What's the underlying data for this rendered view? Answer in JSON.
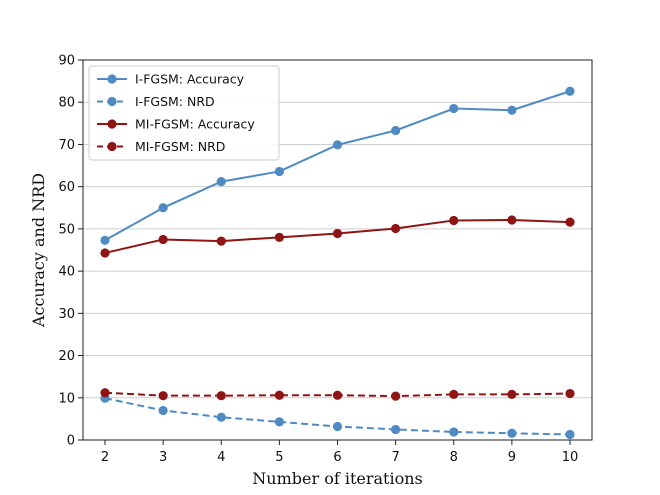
{
  "chart_data": {
    "type": "line",
    "title": "",
    "xlabel": "Number of iterations",
    "ylabel": "Accuracy and NRD",
    "x": [
      2,
      3,
      4,
      5,
      6,
      7,
      8,
      9,
      10
    ],
    "xlim": [
      2,
      10
    ],
    "ylim": [
      0,
      90
    ],
    "yticks": [
      0,
      10,
      20,
      30,
      40,
      50,
      60,
      70,
      80,
      90
    ],
    "grid": "horizontal",
    "legend_position": "top-left",
    "series": [
      {
        "name": "I-FGSM: Accuracy",
        "color": "#4f8bc2",
        "linestyle": "solid",
        "values": [
          47.3,
          55.0,
          61.2,
          63.6,
          69.9,
          73.3,
          78.5,
          78.1,
          82.6
        ]
      },
      {
        "name": "I-FGSM: NRD",
        "color": "#4f8bc2",
        "linestyle": "dashed",
        "values": [
          9.9,
          7.0,
          5.4,
          4.3,
          3.2,
          2.5,
          1.9,
          1.6,
          1.3
        ]
      },
      {
        "name": "MI-FGSM: Accuracy",
        "color": "#8f1515",
        "linestyle": "solid",
        "values": [
          44.3,
          47.5,
          47.1,
          48.0,
          48.9,
          50.1,
          52.0,
          52.1,
          51.6
        ]
      },
      {
        "name": "MI-FGSM: NRD",
        "color": "#8f1515",
        "linestyle": "dashed",
        "values": [
          11.2,
          10.5,
          10.5,
          10.6,
          10.6,
          10.4,
          10.8,
          10.8,
          11.0
        ]
      }
    ]
  }
}
